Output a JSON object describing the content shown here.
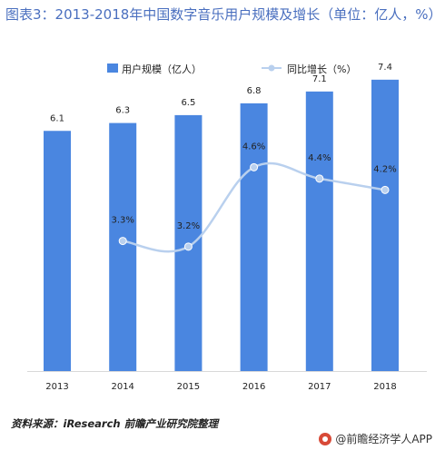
{
  "title": "图表3：2013-2018年中国数字音乐用户规模及增长（单位：亿人，%）",
  "source_text": "资料来源：iResearch 前瞻产业研究院整理",
  "footer_text": "@前瞻经济学人APP",
  "colors": {
    "bar": "#4a86e0",
    "line": "#b9d0ee",
    "marker": "#b9d0ee",
    "title": "#4a6fbf"
  },
  "chart_data": {
    "type": "bar",
    "categories": [
      "2013",
      "2014",
      "2015",
      "2016",
      "2017",
      "2018"
    ],
    "series": [
      {
        "name": "用户规模（亿人）",
        "type": "bar",
        "values": [
          6.1,
          6.3,
          6.5,
          6.8,
          7.1,
          7.4
        ],
        "labels": [
          "6.1",
          "6.3",
          "6.5",
          "6.8",
          "7.1",
          "7.4"
        ]
      },
      {
        "name": "同比增长（%）",
        "type": "line",
        "values": [
          null,
          3.3,
          3.2,
          4.6,
          4.4,
          4.2
        ],
        "labels": [
          "",
          "3.3%",
          "3.2%",
          "4.6%",
          "4.4%",
          "4.2%"
        ]
      }
    ],
    "legend_position": "top"
  }
}
